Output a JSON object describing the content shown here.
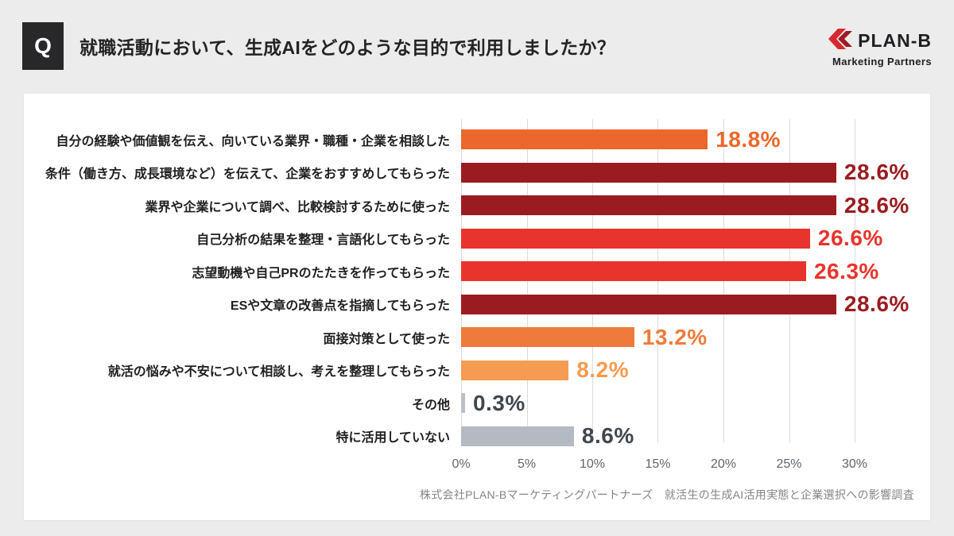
{
  "header": {
    "q_label": "Q",
    "title": "就職活動において、生成AIをどのような目的で利用しましたか？",
    "logo": {
      "brand": "PLAN-B",
      "subtitle": "Marketing Partners",
      "icon": "planb-double-chevron-icon",
      "brand_red": "#D7282F",
      "brand_dark_red": "#9E1B21"
    }
  },
  "chart_data": {
    "type": "bar",
    "orientation": "horizontal",
    "title": "就職活動において、生成AIをどのような目的で利用しましたか？",
    "categories": [
      "自分の経験や価値観を伝え、向いている業界・職種・企業を相談した",
      "条件（働き方、成長環境など）を伝えて、企業をおすすめしてもらった",
      "業界や企業について調べ、比較検討するために使った",
      "自己分析の結果を整理・言語化してもらった",
      "志望動機や自己PRのたたきを作ってもらった",
      "ESや文章の改善点を指摘してもらった",
      "面接対策として使った",
      "就活の悩みや不安について相談し、考えを整理してもらった",
      "その他",
      "特に活用していない"
    ],
    "values": [
      18.8,
      28.6,
      28.6,
      26.6,
      26.3,
      28.6,
      13.2,
      8.2,
      0.3,
      8.6
    ],
    "unit": "%",
    "bar_colors": [
      "#EC672B",
      "#9B1C20",
      "#9B1C20",
      "#E8342C",
      "#E8342C",
      "#9B1C20",
      "#EE7B3C",
      "#F69B52",
      "#BCC1C7",
      "#B4BAC1"
    ],
    "value_label_colors": [
      "#EC672B",
      "#9B1C20",
      "#9B1C20",
      "#E8342C",
      "#E8342C",
      "#9B1C20",
      "#EE7B3C",
      "#F69B52",
      "#41474F",
      "#41474F"
    ],
    "x_ticks": [
      "0%",
      "5%",
      "10%",
      "15%",
      "20%",
      "25%",
      "30%"
    ],
    "x_tick_values": [
      0,
      5,
      10,
      15,
      20,
      25,
      30
    ],
    "xlim": [
      0,
      34
    ],
    "grid": true,
    "legend": false,
    "grid_color": "#DBDBDB"
  },
  "footer": {
    "source": "株式会社PLAN-Bマーケティングパートナーズ　就活生の生成AI活用実態と企業選択への影響調査"
  }
}
